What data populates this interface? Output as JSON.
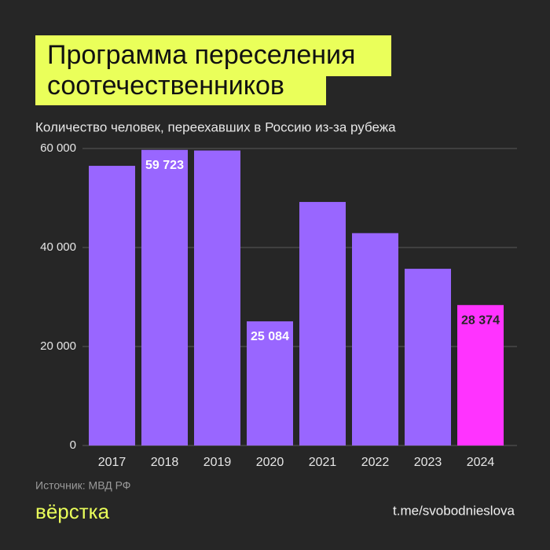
{
  "chart_data": {
    "type": "bar",
    "title": [
      "Программа переселения",
      "соотечественников"
    ],
    "subtitle": "Количество человек, переехавших в Россию из-за рубежа",
    "categories": [
      "2017",
      "2018",
      "2019",
      "2020",
      "2021",
      "2022",
      "2023",
      "2024"
    ],
    "values": [
      56500,
      59723,
      59600,
      25084,
      49200,
      42900,
      35700,
      28374
    ],
    "value_labels": [
      null,
      "59 723",
      null,
      "25 084",
      null,
      null,
      null,
      "28 374"
    ],
    "colors": [
      "#9966ff",
      "#9966ff",
      "#9966ff",
      "#9966ff",
      "#9966ff",
      "#9966ff",
      "#9966ff",
      "#ff33ff"
    ],
    "ylim": [
      0,
      60000
    ],
    "yticks": [
      0,
      {
        "value": 20000,
        "label": "20 000"
      },
      {
        "value": 40000,
        "label": "40 000"
      },
      {
        "value": 60000,
        "label": "60 000"
      }
    ],
    "grid": true,
    "source": "Источник: МВД РФ",
    "logo": "вёрстка",
    "link": "t.me/svobodnieslova"
  }
}
